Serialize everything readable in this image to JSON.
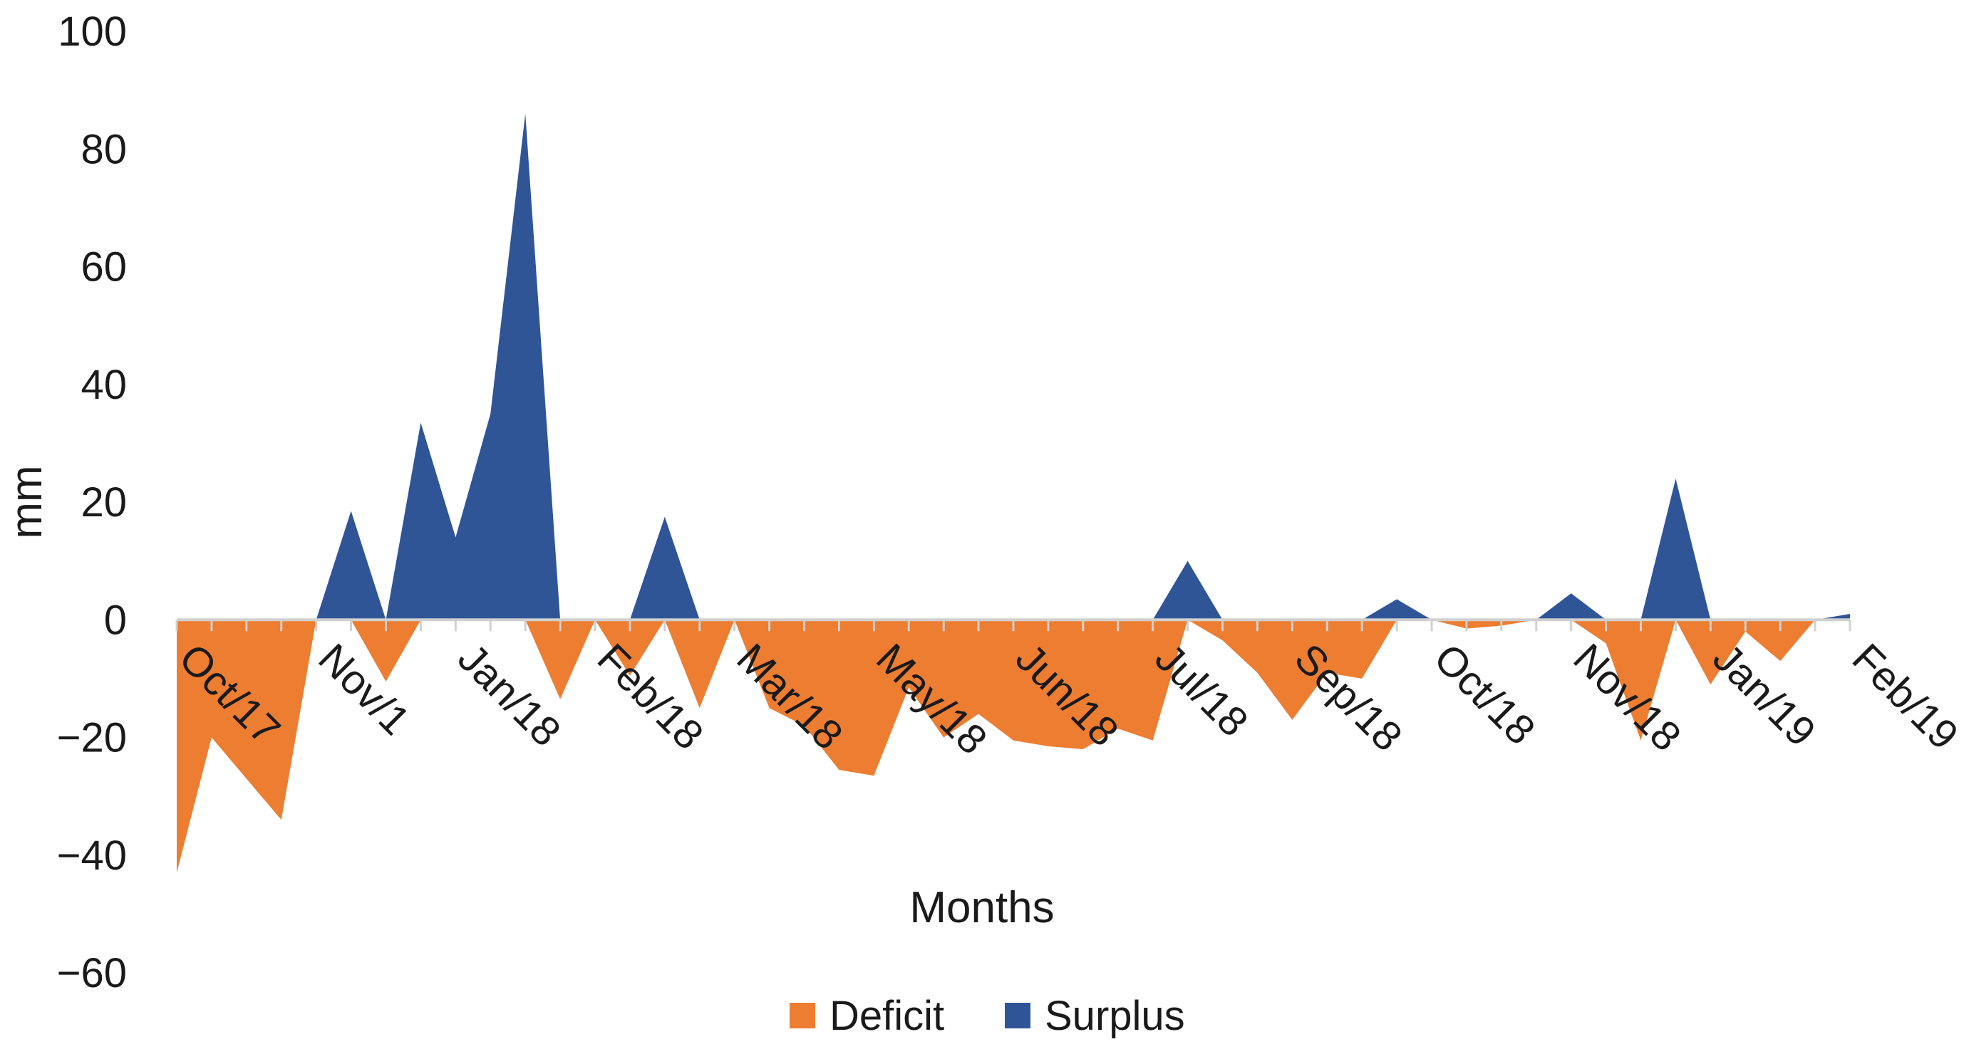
{
  "chart_data": {
    "type": "area",
    "title": "",
    "xlabel": "Months",
    "ylabel": "mm",
    "ylim": [
      -60,
      100
    ],
    "yticks": [
      100,
      80,
      60,
      40,
      20,
      0,
      -20,
      -40,
      -60
    ],
    "ytick_labels": [
      "100",
      "80",
      "60",
      "40",
      "20",
      "0",
      "−20",
      "−40",
      "−60"
    ],
    "grid": false,
    "legend_position": "bottom",
    "x_count": 49,
    "category_labels": [
      {
        "index": 0,
        "label": "Oct/17"
      },
      {
        "index": 4,
        "label": "Nov/1"
      },
      {
        "index": 8,
        "label": "Jan/18"
      },
      {
        "index": 12,
        "label": "Feb/18"
      },
      {
        "index": 16,
        "label": "Mar/18"
      },
      {
        "index": 20,
        "label": "May/18"
      },
      {
        "index": 24,
        "label": "Jun/18"
      },
      {
        "index": 28,
        "label": "Jul/18"
      },
      {
        "index": 32,
        "label": "Sep/18"
      },
      {
        "index": 36,
        "label": "Oct/18"
      },
      {
        "index": 40,
        "label": "Nov/18"
      },
      {
        "index": 44,
        "label": "Jan/19"
      },
      {
        "index": 48,
        "label": "Feb/19"
      }
    ],
    "series": [
      {
        "name": "Deficit",
        "color": "#ED7D31",
        "values": [
          -43,
          -20,
          -27,
          -34,
          0,
          0,
          -10.5,
          0,
          0,
          0,
          0,
          -13.5,
          0,
          -9.5,
          0,
          -15,
          0,
          -15,
          -18,
          -25.5,
          -26.5,
          -11.5,
          -20,
          -16,
          -20.5,
          -21.5,
          -22,
          -18.5,
          -20.5,
          0,
          -3.5,
          -9,
          -17,
          -9,
          -10,
          0,
          0,
          -1.5,
          -1,
          0,
          0,
          -4,
          -20.5,
          0,
          -11,
          -2,
          -7,
          0,
          0
        ]
      },
      {
        "name": "Surplus",
        "color": "#2F5597",
        "values": [
          0,
          0,
          0,
          0,
          0,
          18.5,
          0,
          33.5,
          14,
          35,
          86,
          0,
          0,
          0,
          17.5,
          0,
          0,
          0,
          0,
          0,
          0,
          0,
          0,
          0,
          0,
          0,
          0,
          0,
          0,
          10,
          0,
          0,
          0,
          0,
          0,
          3.5,
          0,
          0,
          0,
          0,
          4.5,
          0,
          0,
          24,
          0,
          0,
          0,
          0,
          1
        ]
      }
    ]
  }
}
